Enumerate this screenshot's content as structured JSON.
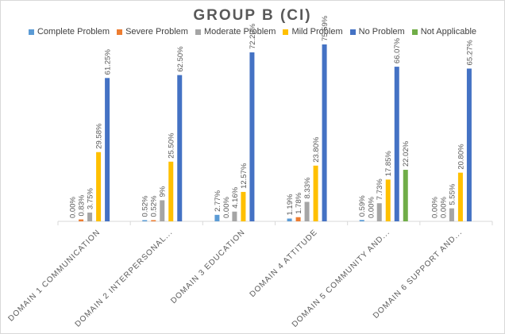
{
  "chart_data": {
    "type": "bar",
    "title": "GROUP B (CI)",
    "xlabel": "",
    "ylabel": "",
    "ylim": [
      0,
      80
    ],
    "grid": false,
    "legend_position": "top",
    "categories": [
      "DOMAIN 1 COMMUNICATION",
      "DOMAIN 2 INTERPERSONAL...",
      "DOMAIN 3 EDUCATION",
      "DOMAIN 4 ATTITUDE",
      "DOMAIN 5 COMMUNITY AND...",
      "DOMAIN 6 SUPPORT AND..."
    ],
    "series": [
      {
        "name": "Complete Problem",
        "color": "#5b9bd5",
        "values": [
          0.0,
          0.52,
          2.77,
          1.19,
          0.59,
          0.0
        ],
        "labels": [
          "0.00%",
          "0.52%",
          "2.77%",
          "1.19%",
          "0.59%",
          "0.00%"
        ]
      },
      {
        "name": "Severe Problem",
        "color": "#ed7d31",
        "values": [
          0.83,
          0.52,
          0.0,
          1.78,
          0.0,
          0.0
        ],
        "labels": [
          "0.83%",
          "0.52%",
          "0.00%",
          "1.78%",
          "0.00%",
          "0.00%"
        ]
      },
      {
        "name": "Moderate Problem",
        "color": "#a5a5a5",
        "values": [
          3.75,
          9,
          4.16,
          8.33,
          7.73,
          5.55
        ],
        "labels": [
          "3.75%",
          "9%",
          "4.16%",
          "8.33%",
          "7.73%",
          "5.55%"
        ]
      },
      {
        "name": "Mild Problem",
        "color": "#ffc000",
        "values": [
          29.58,
          25.5,
          12.57,
          23.8,
          17.85,
          20.8
        ],
        "labels": [
          "29.58%",
          "25.50%",
          "12.57%",
          "23.80%",
          "17.85%",
          "20.80%"
        ]
      },
      {
        "name": "No Problem",
        "color": "#4472c4",
        "values": [
          61.25,
          62.5,
          72.2,
          75.59,
          66.07,
          65.27
        ],
        "labels": [
          "61.25%",
          "62.50%",
          "72.20%",
          "75.59%",
          "66.07%",
          "65.27%"
        ]
      },
      {
        "name": "Not Applicable",
        "color": "#70ad47",
        "values": [
          null,
          null,
          null,
          null,
          22.02,
          null
        ],
        "labels": [
          null,
          null,
          null,
          null,
          "22.02%",
          null
        ]
      }
    ]
  }
}
